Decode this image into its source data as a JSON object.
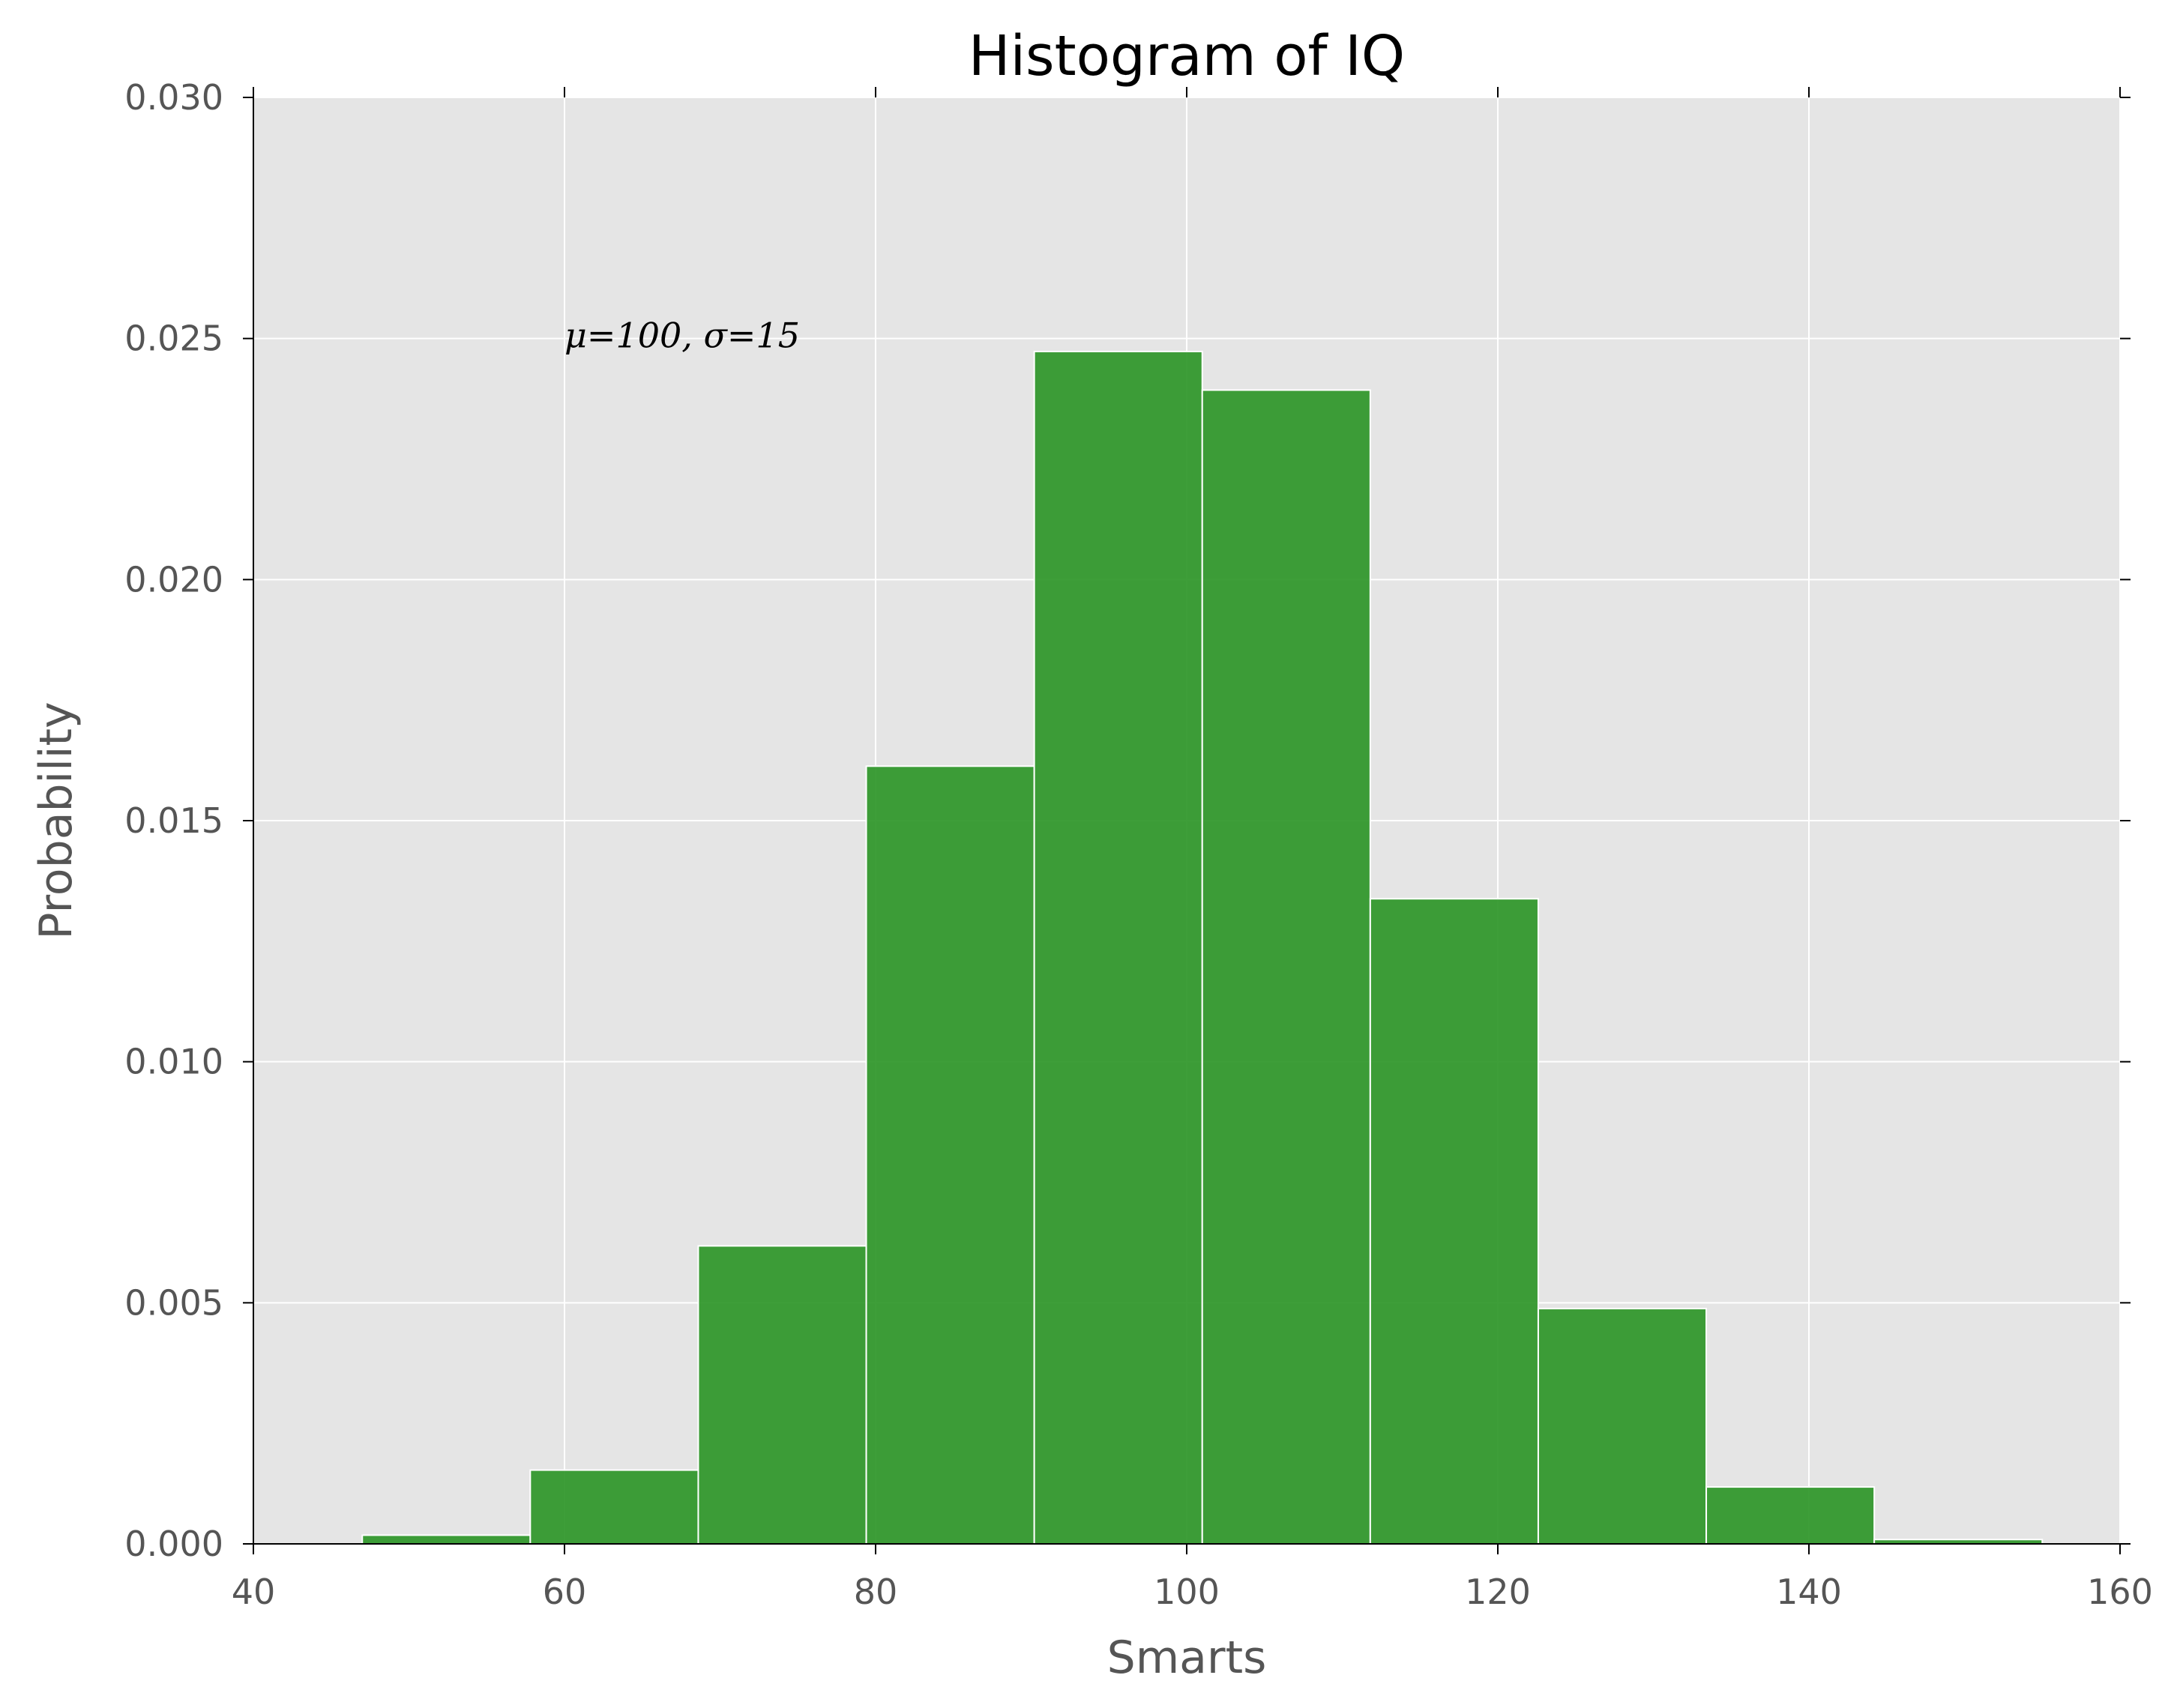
{
  "chart_data": {
    "type": "bar",
    "title": "Histogram of IQ",
    "xlabel": "Smarts",
    "ylabel": "Probability",
    "xlim": [
      40,
      160
    ],
    "ylim": [
      0,
      0.03
    ],
    "grid": true,
    "xticks": [
      40,
      60,
      80,
      100,
      120,
      140,
      160
    ],
    "xtick_labels": [
      "40",
      "60",
      "80",
      "100",
      "120",
      "140",
      "160"
    ],
    "yticks": [
      0,
      0.005,
      0.01,
      0.015,
      0.02,
      0.025,
      0.03
    ],
    "ytick_labels": [
      "0.000",
      "0.005",
      "0.010",
      "0.015",
      "0.020",
      "0.025",
      "0.030"
    ],
    "bins": [
      {
        "x0": 47.0,
        "x1": 57.8,
        "value": 0.00018
      },
      {
        "x0": 57.8,
        "x1": 68.6,
        "value": 0.00153
      },
      {
        "x0": 68.6,
        "x1": 79.4,
        "value": 0.00618
      },
      {
        "x0": 79.4,
        "x1": 90.2,
        "value": 0.01613
      },
      {
        "x0": 90.2,
        "x1": 101.0,
        "value": 0.02473
      },
      {
        "x0": 101.0,
        "x1": 111.8,
        "value": 0.02393
      },
      {
        "x0": 111.8,
        "x1": 122.6,
        "value": 0.01338
      },
      {
        "x0": 122.6,
        "x1": 133.4,
        "value": 0.00488
      },
      {
        "x0": 133.4,
        "x1": 144.2,
        "value": 0.00118
      },
      {
        "x0": 144.2,
        "x1": 155.0,
        "value": 9e-05
      }
    ],
    "bar_color": "#2e9628",
    "background_color": "#e5e5e5",
    "grid_color": "#ffffff",
    "annotation": {
      "text": "μ=100,  σ=15",
      "x": 60,
      "y": 0.025
    }
  }
}
